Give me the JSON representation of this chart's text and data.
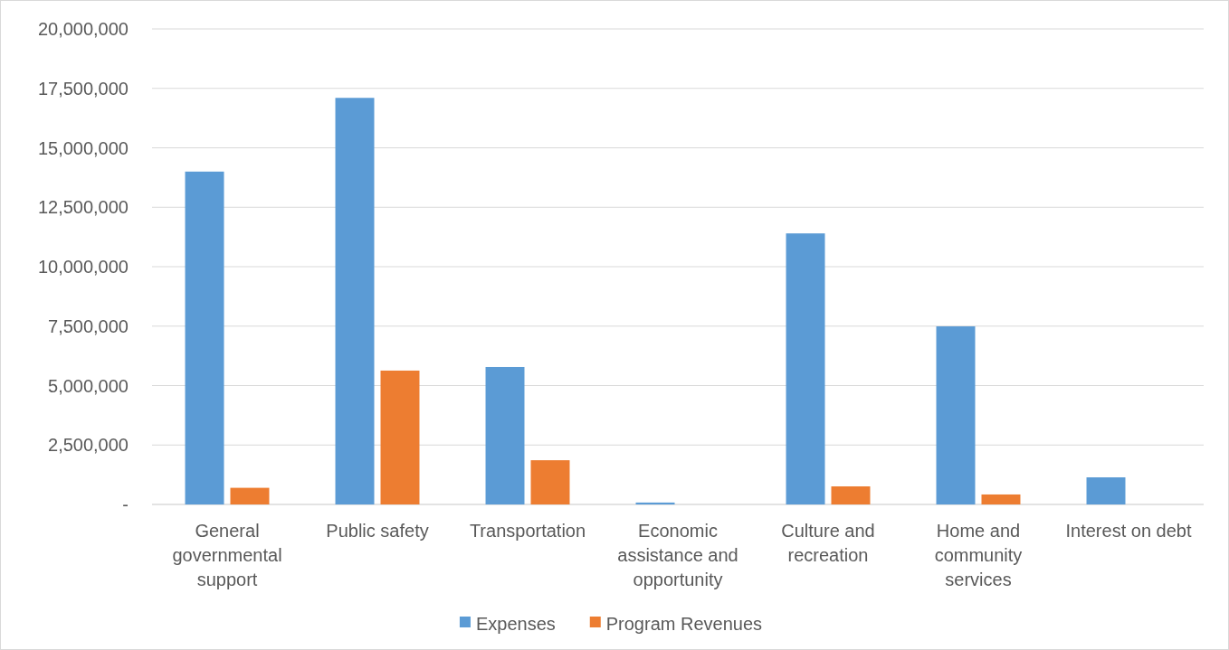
{
  "chart_data": {
    "type": "bar",
    "categories": [
      "General governmental support",
      "Public safety",
      "Transportation",
      "Economic assistance and opportunity",
      "Culture and recreation",
      "Home and community services",
      "Interest on debt"
    ],
    "series": [
      {
        "name": "Expenses",
        "color": "#5b9bd5",
        "values": [
          14000000,
          17100000,
          5780000,
          80000,
          11400000,
          7490000,
          1140000
        ]
      },
      {
        "name": "Program Revenues",
        "color": "#ed7d31",
        "values": [
          700000,
          5630000,
          1860000,
          0,
          760000,
          420000,
          0
        ]
      }
    ],
    "ylim": [
      0,
      20000000
    ],
    "yticks": [
      {
        "value": 0,
        "label": "-"
      },
      {
        "value": 2500000,
        "label": "2,500,000"
      },
      {
        "value": 5000000,
        "label": "5,000,000"
      },
      {
        "value": 7500000,
        "label": "7,500,000"
      },
      {
        "value": 10000000,
        "label": "10,000,000"
      },
      {
        "value": 12500000,
        "label": "12,500,000"
      },
      {
        "value": 15000000,
        "label": "15,000,000"
      },
      {
        "value": 17500000,
        "label": "17,500,000"
      },
      {
        "value": 20000000,
        "label": "20,000,000"
      }
    ],
    "grid": "y",
    "legend": "bottom"
  }
}
